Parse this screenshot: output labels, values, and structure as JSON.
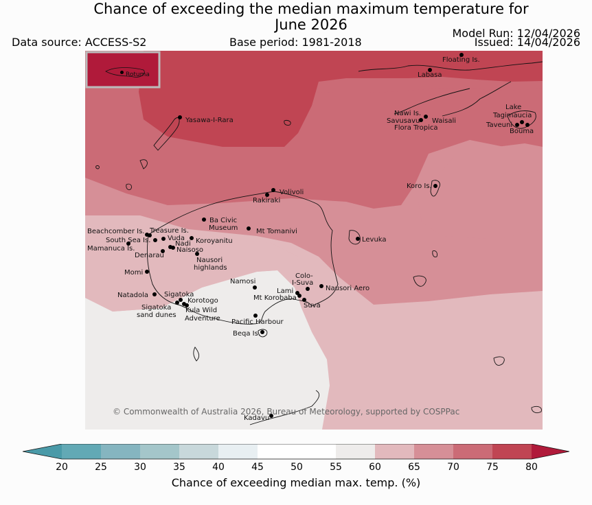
{
  "title_line1": "Chance of exceeding the median maximum temperature for",
  "title_line2": "June 2026",
  "data_source": "Data source: ACCESS-S2",
  "base_period": "Base period: 1981-2018",
  "model_run": "Model Run: 12/04/2026",
  "issued": "Issued: 14/04/2026",
  "inset_label": "Rotuma",
  "copyright": "© Commonwealth of Australia 2026, Bureau of Meteorology, supported by COSPPac",
  "colorbar": {
    "label": "Chance of exceeding median max. temp. (%)",
    "ticks": [
      "20",
      "25",
      "30",
      "35",
      "40",
      "45",
      "50",
      "55",
      "60",
      "65",
      "70",
      "75",
      "80"
    ],
    "colors": {
      "below_20": "#4a9aa8",
      "c20_25": "#62a9b5",
      "c25_30": "#85b5c0",
      "c30_35": "#a4c6ca",
      "c35_40": "#c8d8db",
      "c40_45": "#e8eff2",
      "c45_50": "#ffffff",
      "c50_55": "#ffffff",
      "c55_60": "#eeeceb",
      "c60_65": "#e2b9bd",
      "c65_70": "#d68f97",
      "c70_75": "#cb6b76",
      "c75_80": "#c04553",
      "above_80": "#b01a3a"
    }
  },
  "places": {
    "floating": "Floating Is.",
    "labasa": "Labasa",
    "yasawa": "Yasawa-I-Rara",
    "nawi": "Nawi Is.",
    "savusavu": "Savusavu",
    "waisali": "Waisali",
    "flora": "Flora Tropica",
    "lake": "Lake",
    "tagimaucia": "Tagimaucia",
    "taveuni": "Taveuni",
    "bouma": "Bouma",
    "koro": "Koro Is.",
    "volivoli": "Volivoli",
    "rakiraki": "Rakiraki",
    "ba_civic_1": "Ba Civic",
    "ba_civic_2": "Museum",
    "mt_tomanivi": "Mt Tomanivi",
    "beachcomber": "Beachcomber Is.",
    "treasure": "Treasure Is.",
    "southsea": "South Sea Is.",
    "vuda": "Vuda",
    "koroyanitu": "Koroyanitu",
    "nadi": "Nadi",
    "mamanuca": "Mamanuca Is.",
    "naisoso": "Naisoso",
    "denarau": "Denarau",
    "levuka": "Levuka",
    "nausori_h1": "Nausori",
    "nausori_h2": "highlands",
    "momi": "Momi",
    "namosi": "Namosi",
    "colo_1": "Colo-",
    "colo_2": "I-Suva",
    "natadola": "Natadola",
    "sigatoka": "Sigatoka",
    "lami": "Lami",
    "nausori_aero": "Nausori Aero",
    "korotogo": "Korotogo",
    "mt_korobaba": "Mt Korobaba",
    "sigatoka_dunes_1": "Sigatoka",
    "sigatoka_dunes_2": "sand dunes",
    "suva": "Suva",
    "kula_1": "Kula Wild",
    "kula_2": "Adventure",
    "pacific_harbour": "Pacific Harbour",
    "beqa": "Beqa Is.",
    "kadavu": "Kadavu"
  }
}
